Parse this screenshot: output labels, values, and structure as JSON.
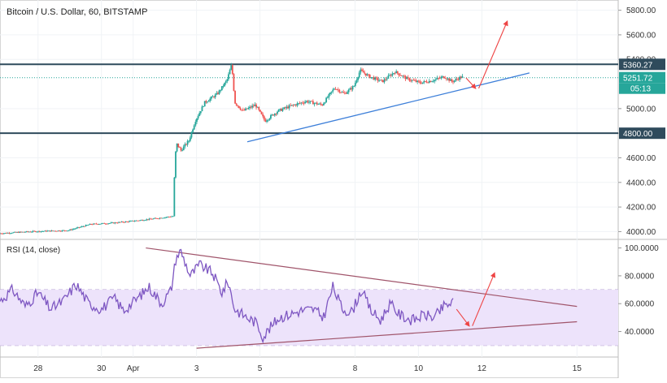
{
  "header": {
    "title": "Bitcoin / U.S. Dollar, 60, BITSTAMP"
  },
  "rsi_header": {
    "title": "RSI (14, close)"
  },
  "colors": {
    "candle_up": "#26a69a",
    "candle_down": "#ef5350",
    "level_line": "#2f4b5c",
    "trend_line": "#3d7fd9",
    "arrow": "#ee4444",
    "rsi_line": "#7e57c2",
    "rsi_band": "#ede3fb",
    "rsi_trend": "#a0546a",
    "current_price": "#26a69a"
  },
  "chart_data": [
    {
      "type": "candlestick",
      "title": "Bitcoin / U.S. Dollar, 60, BITSTAMP",
      "y_ticks": [
        "5800.00",
        "5600.00",
        "5400.00",
        "5000.00",
        "4800.00",
        "4600.00",
        "4400.00",
        "4200.00",
        "4000.00"
      ],
      "y_tick_values": [
        5800,
        5600,
        5400,
        5000,
        4800,
        4600,
        4400,
        4200,
        4000
      ],
      "ylim": [
        3950,
        5870
      ],
      "x_ticks": [
        "28",
        "30",
        "Apr",
        "3",
        "5",
        "8",
        "10",
        "12",
        "15"
      ],
      "x_tick_days": [
        -3,
        -1,
        0,
        2,
        4,
        7,
        9,
        11,
        14
      ],
      "xlim": [
        -4.2,
        15.3
      ],
      "levels": [
        {
          "label": "5360.27",
          "value": 5360.27
        },
        {
          "label": "4800.00",
          "value": 4800.0
        }
      ],
      "current_price": {
        "label": "5251.72",
        "value": 5251.72,
        "countdown": "05:13"
      },
      "price_path": [
        [
          -4.2,
          3985
        ],
        [
          -3.2,
          4000
        ],
        [
          -2.0,
          4010
        ],
        [
          -1.3,
          4060
        ],
        [
          -0.6,
          4070
        ],
        [
          0.0,
          4085
        ],
        [
          0.7,
          4105
        ],
        [
          1.3,
          4125
        ],
        [
          1.35,
          4500
        ],
        [
          1.4,
          4720
        ],
        [
          1.55,
          4660
        ],
        [
          1.8,
          4740
        ],
        [
          2.0,
          4900
        ],
        [
          2.3,
          5050
        ],
        [
          2.7,
          5120
        ],
        [
          3.0,
          5230
        ],
        [
          3.15,
          5360
        ],
        [
          3.25,
          5050
        ],
        [
          3.5,
          4980
        ],
        [
          3.9,
          5030
        ],
        [
          4.2,
          4900
        ],
        [
          4.6,
          4980
        ],
        [
          5.0,
          5020
        ],
        [
          5.5,
          5060
        ],
        [
          6.0,
          5030
        ],
        [
          6.4,
          5170
        ],
        [
          6.7,
          5120
        ],
        [
          7.0,
          5180
        ],
        [
          7.2,
          5310
        ],
        [
          7.5,
          5260
        ],
        [
          7.9,
          5220
        ],
        [
          8.3,
          5300
        ],
        [
          8.7,
          5240
        ],
        [
          9.1,
          5210
        ],
        [
          9.5,
          5230
        ],
        [
          9.85,
          5260
        ],
        [
          10.1,
          5220
        ],
        [
          10.4,
          5258
        ]
      ],
      "trend_line": {
        "from": [
          3.6,
          4730
        ],
        "to": [
          12.5,
          5290
        ]
      },
      "arrows": [
        {
          "from": [
            10.5,
            5250
          ],
          "to": [
            10.8,
            5165
          ]
        },
        {
          "from": [
            10.9,
            5165
          ],
          "to": [
            11.8,
            5710
          ]
        }
      ]
    },
    {
      "type": "line",
      "title": "RSI (14, close)",
      "y_ticks": [
        "100.0000",
        "80.0000",
        "60.0000",
        "40.0000"
      ],
      "y_tick_values": [
        100,
        80,
        60,
        40
      ],
      "ylim": [
        24,
        105
      ],
      "band": [
        30,
        70
      ],
      "series": [
        {
          "values": [
            [
              -4.2,
              62
            ],
            [
              -3.8,
              70
            ],
            [
              -3.4,
              58
            ],
            [
              -3.0,
              68
            ],
            [
              -2.6,
              56
            ],
            [
              -2.2,
              62
            ],
            [
              -1.8,
              74
            ],
            [
              -1.4,
              60
            ],
            [
              -1.0,
              56
            ],
            [
              -0.6,
              64
            ],
            [
              -0.3,
              55
            ],
            [
              0.1,
              63
            ],
            [
              0.5,
              72
            ],
            [
              0.9,
              60
            ],
            [
              1.2,
              70
            ],
            [
              1.35,
              93
            ],
            [
              1.5,
              98
            ],
            [
              1.8,
              80
            ],
            [
              2.1,
              88
            ],
            [
              2.5,
              82
            ],
            [
              2.8,
              68
            ],
            [
              3.0,
              76
            ],
            [
              3.2,
              56
            ],
            [
              3.6,
              50
            ],
            [
              3.9,
              46
            ],
            [
              4.1,
              36
            ],
            [
              4.3,
              42
            ],
            [
              4.6,
              50
            ],
            [
              4.9,
              52
            ],
            [
              5.3,
              55
            ],
            [
              5.7,
              56
            ],
            [
              6.0,
              50
            ],
            [
              6.3,
              72
            ],
            [
              6.6,
              56
            ],
            [
              6.9,
              54
            ],
            [
              7.2,
              70
            ],
            [
              7.5,
              55
            ],
            [
              7.8,
              48
            ],
            [
              8.1,
              60
            ],
            [
              8.4,
              52
            ],
            [
              8.8,
              48
            ],
            [
              9.2,
              52
            ],
            [
              9.5,
              50
            ],
            [
              9.8,
              58
            ],
            [
              10.1,
              61
            ]
          ]
        }
      ],
      "trend_lines": [
        {
          "from": [
            0.4,
            100
          ],
          "to": [
            14.0,
            58
          ]
        },
        {
          "from": [
            2.0,
            28
          ],
          "to": [
            14.0,
            47
          ]
        }
      ],
      "arrows": [
        {
          "from": [
            10.2,
            56
          ],
          "to": [
            10.6,
            44
          ]
        },
        {
          "from": [
            10.7,
            44
          ],
          "to": [
            11.4,
            82
          ]
        }
      ]
    }
  ]
}
